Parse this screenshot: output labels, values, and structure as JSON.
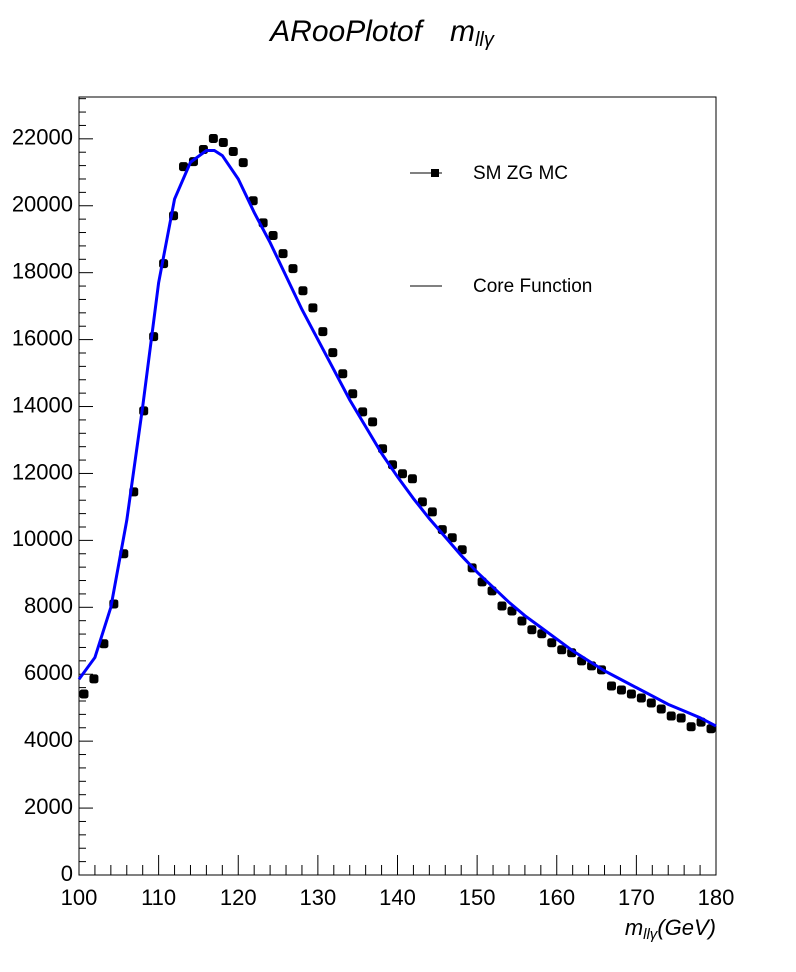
{
  "chart_data": {
    "type": "scatter",
    "title": "ARooPlotof",
    "title_var": {
      "symbol": "m",
      "sub": "llγ"
    },
    "x_label": {
      "symbol": "m",
      "sub": "llγ",
      "unit": "(GeV)"
    },
    "xlim": [
      100,
      180
    ],
    "xticks": [
      100,
      110,
      120,
      130,
      140,
      150,
      160,
      170,
      180
    ],
    "ylim": [
      0,
      23250
    ],
    "yticks": [
      0,
      2000,
      4000,
      6000,
      8000,
      10000,
      12000,
      14000,
      16000,
      18000,
      20000,
      22000
    ],
    "legend_position": "upper-right",
    "legend_line_color": "#000000",
    "series": [
      {
        "name": "SM ZG MC",
        "style": "markers",
        "color": "#000000",
        "x": [
          100.625,
          101.875,
          103.125,
          104.375,
          105.625,
          106.875,
          108.125,
          109.375,
          110.625,
          111.875,
          113.125,
          114.375,
          115.625,
          116.875,
          118.125,
          119.375,
          120.625,
          121.875,
          123.125,
          124.375,
          125.625,
          126.875,
          128.125,
          129.375,
          130.625,
          131.875,
          133.125,
          134.375,
          135.625,
          136.875,
          138.125,
          139.375,
          140.625,
          141.875,
          143.125,
          144.375,
          145.625,
          146.875,
          148.125,
          149.375,
          150.625,
          151.875,
          153.125,
          154.375,
          155.625,
          156.875,
          158.125,
          159.375,
          160.625,
          161.875,
          163.125,
          164.375,
          165.625,
          166.875,
          168.125,
          169.375,
          170.625,
          171.875,
          173.125,
          174.375,
          175.625,
          176.875,
          178.125,
          179.375
        ],
        "values": [
          5410,
          5860,
          6910,
          8100,
          9600,
          11450,
          13870,
          16090,
          18270,
          19700,
          21170,
          21320,
          21680,
          22010,
          21890,
          21620,
          21290,
          20150,
          19490,
          19110,
          18570,
          18120,
          17460,
          16950,
          16240,
          15610,
          14980,
          14380,
          13840,
          13540,
          12740,
          12260,
          11990,
          11840,
          11150,
          10850,
          10320,
          10080,
          9720,
          9180,
          8760,
          8490,
          8040,
          7890,
          7590,
          7330,
          7210,
          6940,
          6730,
          6640,
          6400,
          6250,
          6130,
          5650,
          5530,
          5410,
          5290,
          5140,
          4960,
          4750,
          4690,
          4430,
          4570,
          4370
        ]
      },
      {
        "name": "Core Function",
        "style": "line",
        "color": "#0000ff",
        "x": [
          100,
          102,
          104,
          106,
          108,
          110,
          112,
          114,
          116,
          117,
          118,
          120,
          122,
          124,
          126,
          128,
          130,
          132,
          134,
          136,
          138,
          140,
          142,
          144,
          146,
          148,
          150,
          152,
          154,
          156,
          158,
          160,
          162,
          164,
          166,
          168,
          170,
          172,
          174,
          176,
          178,
          180
        ],
        "values": [
          5850,
          6500,
          8000,
          10600,
          14000,
          17700,
          20200,
          21300,
          21650,
          21650,
          21500,
          20800,
          19800,
          18900,
          17900,
          16900,
          16000,
          15100,
          14200,
          13400,
          12600,
          11900,
          11250,
          10650,
          10100,
          9550,
          9050,
          8600,
          8150,
          7750,
          7400,
          7050,
          6700,
          6400,
          6100,
          5850,
          5600,
          5350,
          5100,
          4900,
          4700,
          4450
        ]
      }
    ]
  }
}
